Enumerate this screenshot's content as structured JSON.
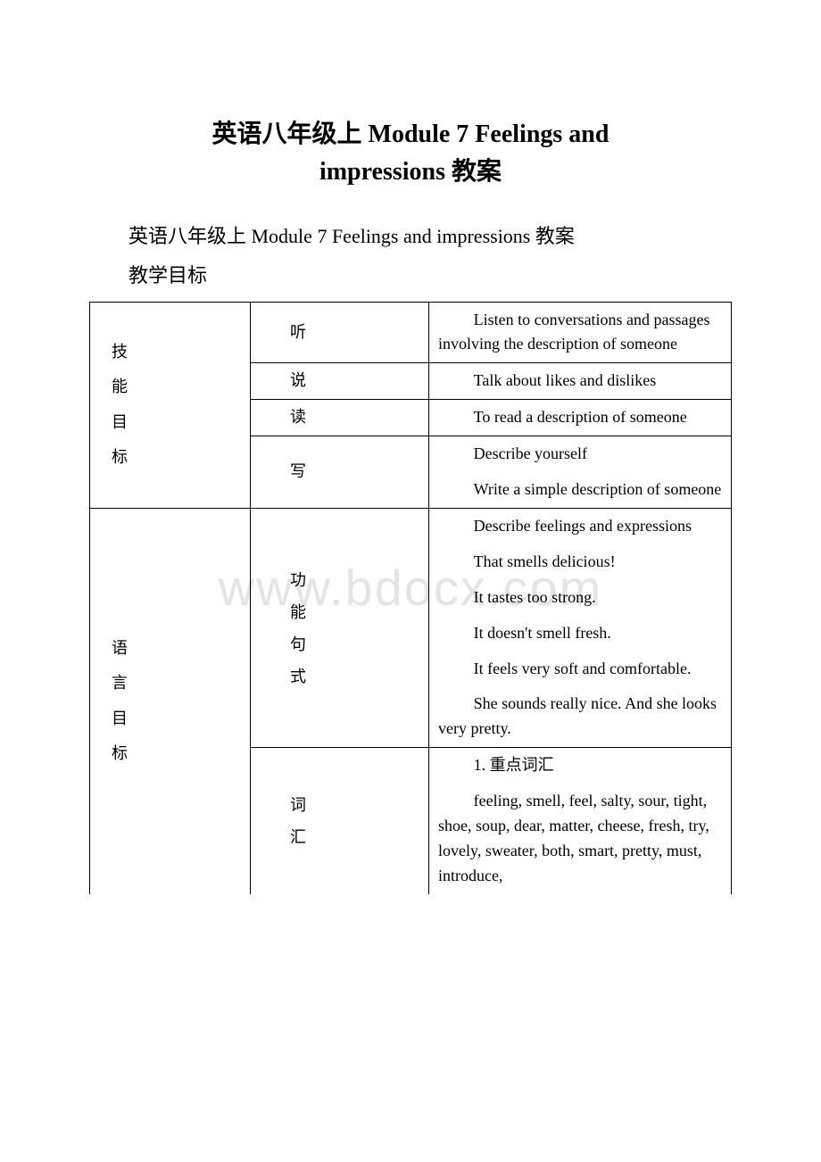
{
  "watermark": "www.bdocx.com",
  "title_line1": "英语八年级上 Module 7 Feelings and",
  "title_line2": "impressions 教案",
  "subtitle": "英语八年级上 Module 7 Feelings and impressions 教案",
  "section_label": "教学目标",
  "table": {
    "group1": {
      "heading": {
        "c1": "技",
        "c2": "能",
        "c3": "目",
        "c4": "标"
      },
      "rows": [
        {
          "label": "听",
          "content": "Listen to conversations and passages involving the description of someone"
        },
        {
          "label": "说",
          "content": "Talk about likes and dislikes"
        },
        {
          "label": "读",
          "content": "To read a description of someone"
        },
        {
          "label": "写",
          "p1": "Describe yourself",
          "p2": "Write a simple description of someone"
        }
      ]
    },
    "group2": {
      "heading": {
        "c1": "语",
        "c2": "言",
        "c3": "目",
        "c4": "标"
      },
      "row1": {
        "label": {
          "c1": "功",
          "c2": "能",
          "c3": "句",
          "c4": "式"
        },
        "p1": "Describe feelings and expressions",
        "p2": "That smells delicious!",
        "p3": "It tastes too strong.",
        "p4": "It doesn't smell fresh.",
        "p5": "It feels very soft and comfortable.",
        "p6": "She sounds really nice. And she looks very pretty."
      },
      "row2": {
        "label": {
          "c1": "词",
          "c2": "汇"
        },
        "p1": "1. 重点词汇",
        "p2": "feeling, smell, feel, salty, sour, tight, shoe, soup, dear, matter, cheese, fresh, try, lovely, sweater, both, smart, pretty, must, introduce,"
      }
    }
  }
}
